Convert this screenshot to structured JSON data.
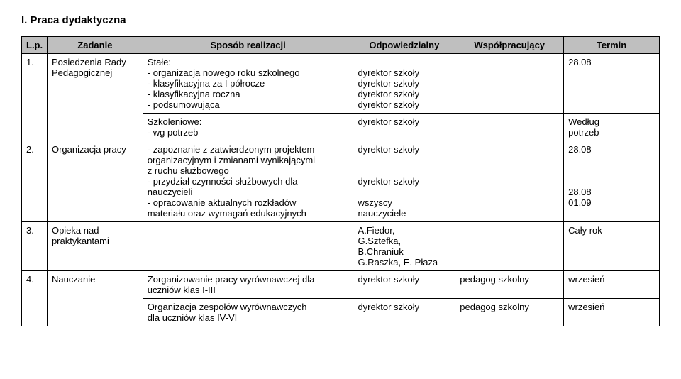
{
  "section_title": "I. Praca dydaktyczna",
  "headers": {
    "lp": "L.p.",
    "zadanie": "Zadanie",
    "sposob": "Sposób realizacji",
    "odpow": "Odpowiedzialny",
    "wsp": "Współpracujący",
    "termin": "Termin"
  },
  "r1a": {
    "lp": "1.",
    "zadanie": "Posiedzenia Rady Pedagogicznej",
    "sposob_l1": "Stałe:",
    "sposob_l2": "- organizacja nowego roku szkolnego",
    "sposob_l3": "- klasyfikacyjna za I półrocze",
    "sposob_l4": "- klasyfikacyjna roczna",
    "sposob_l5": "- podsumowująca",
    "odpow_l1": "dyrektor szkoły",
    "odpow_l2": "dyrektor szkoły",
    "odpow_l3": "dyrektor szkoły",
    "odpow_l4": "dyrektor szkoły",
    "termin": "28.08"
  },
  "r1b": {
    "sposob_l1": "Szkoleniowe:",
    "sposob_l2": "- wg potrzeb",
    "odpow": "dyrektor szkoły",
    "termin_l1": "Według",
    "termin_l2": "potrzeb"
  },
  "r2": {
    "lp": "2.",
    "zadanie": "Organizacja pracy",
    "sposob_l1": "- zapoznanie z zatwierdzonym projektem",
    "sposob_l2": "organizacyjnym i zmianami wynikającymi",
    "sposob_l3": "z ruchu służbowego",
    "sposob_l4": "- przydział czynności służbowych dla",
    "sposob_l5": "nauczycieli",
    "sposob_l6": "- opracowanie aktualnych rozkładów",
    "sposob_l7": "materiału oraz wymagań edukacyjnych",
    "odpow_l1": "dyrektor szkoły",
    "odpow_l4": "dyrektor szkoły",
    "odpow_l6": "wszyscy",
    "odpow_l7": "nauczyciele",
    "termin_l1": "28.08",
    "termin_l5": "28.08",
    "termin_l6": "01.09"
  },
  "r3": {
    "lp": "3.",
    "zadanie_l1": "Opieka nad",
    "zadanie_l2": "praktykantami",
    "odpow_l1": "A.Fiedor,",
    "odpow_l2": "G.Sztefka,",
    "odpow_l3": "B.Chraniuk",
    "odpow_l4": "G.Raszka, E. Płaza",
    "termin": "Cały rok"
  },
  "r4a": {
    "lp": "4.",
    "zadanie": "Nauczanie",
    "sposob_l1": "Zorganizowanie pracy wyrównawczej dla",
    "sposob_l2": "uczniów klas I-III",
    "odpow": "dyrektor szkoły",
    "wsp": "pedagog szkolny",
    "termin": "wrzesień"
  },
  "r4b": {
    "sposob_l1": "Organizacja zespołów wyrównawczych",
    "sposob_l2": "dla uczniów klas IV-VI",
    "odpow": "dyrektor szkoły",
    "wsp": "pedagog szkolny",
    "termin": "wrzesień"
  }
}
